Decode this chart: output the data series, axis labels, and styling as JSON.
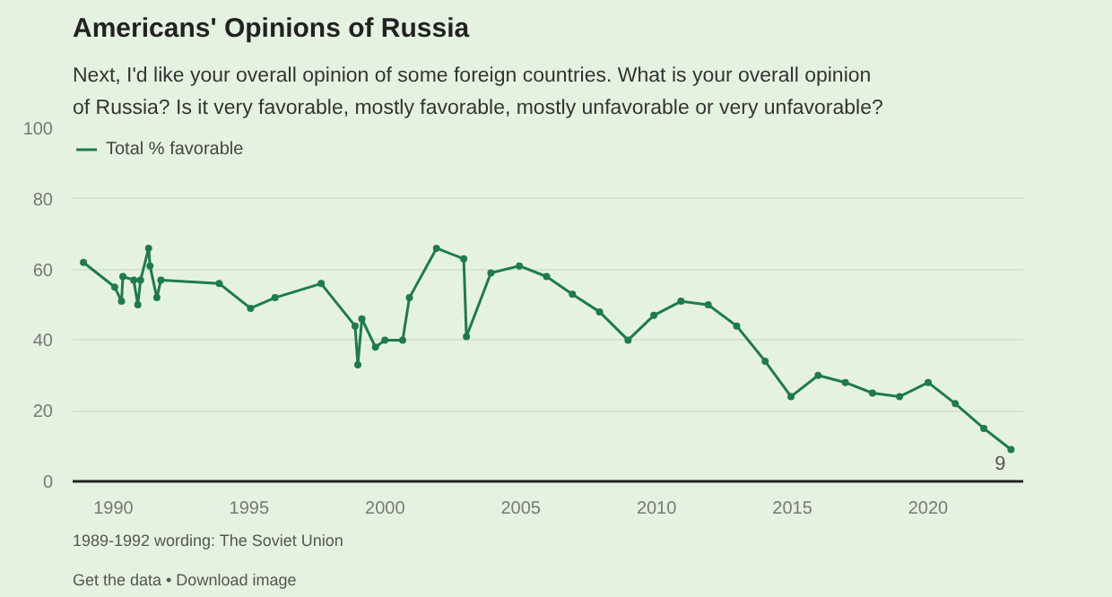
{
  "chart_data": {
    "type": "line",
    "title": "Americans' Opinions of Russia",
    "subtitle": "Next, I'd like your overall opinion of some foreign countries. What is your overall opinion of Russia? Is it very favorable, mostly favorable, mostly unfavorable or very unfavorable?",
    "x": [
      1988.9,
      1990.05,
      1990.3,
      1990.35,
      1990.75,
      1990.9,
      1991.0,
      1991.3,
      1991.35,
      1991.6,
      1991.75,
      1993.9,
      1995.05,
      1995.95,
      1997.65,
      1998.9,
      1999.0,
      1999.15,
      1999.65,
      2000.0,
      2000.65,
      2000.9,
      2001.9,
      2002.9,
      2003.0,
      2003.9,
      2004.95,
      2005.95,
      2006.9,
      2007.9,
      2008.95,
      2009.9,
      2010.9,
      2011.9,
      2012.95,
      2014.0,
      2014.95,
      2015.95,
      2016.95,
      2017.95,
      2018.95,
      2020.0,
      2021.0,
      2022.05,
      2023.05
    ],
    "series": [
      {
        "name": "Total % favorable",
        "color": "#1e7b4e",
        "values": [
          62,
          55,
          51,
          58,
          57,
          50,
          57,
          66,
          61,
          52,
          57,
          56,
          49,
          52,
          56,
          44,
          33,
          46,
          38,
          40,
          40,
          52,
          66,
          63,
          41,
          59,
          61,
          58,
          53,
          48,
          40,
          47,
          51,
          50,
          44,
          34,
          24,
          30,
          28,
          25,
          24,
          28,
          22,
          15,
          9
        ],
        "value_labels": [
          null,
          null,
          null,
          null,
          null,
          null,
          null,
          null,
          null,
          null,
          null,
          null,
          null,
          null,
          null,
          null,
          null,
          null,
          null,
          null,
          null,
          null,
          null,
          null,
          null,
          null,
          null,
          null,
          null,
          null,
          null,
          null,
          null,
          null,
          null,
          null,
          null,
          null,
          null,
          null,
          null,
          null,
          null,
          null,
          "9"
        ]
      }
    ],
    "xlim": [
      1988.5,
      2023.5
    ],
    "xticks": [
      1990,
      1995,
      2000,
      2005,
      2010,
      2015,
      2020
    ],
    "ylim": [
      0,
      100
    ],
    "yticks": [
      0,
      20,
      40,
      60,
      80,
      100
    ],
    "grid": "y",
    "legend": "top left",
    "marker": "circle",
    "line_style": "solid",
    "annotations": [
      "1989-1992 wording: The Soviet Union",
      "Get the data • Download image"
    ]
  }
}
